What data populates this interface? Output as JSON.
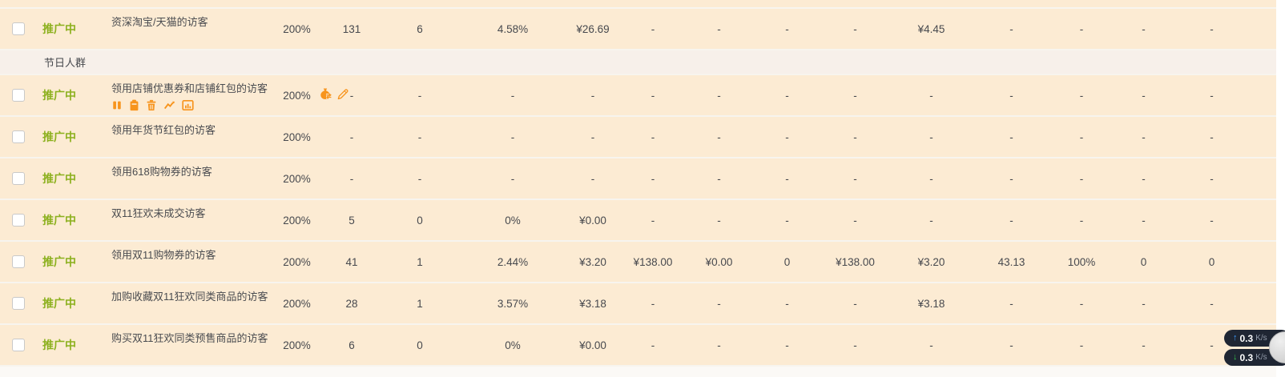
{
  "colors": {
    "row_bg": "#fcebd3",
    "section_bg": "#f7f0ea",
    "separator": "#f7f4ee",
    "status_green": "#8cb01e",
    "icon_orange": "#f7941d",
    "value_text": "#47494e",
    "monitor_bg": "#1f2633",
    "monitor_up_arrow": "#3d9bff",
    "monitor_down_arrow": "#35c24a"
  },
  "table": {
    "rows": [
      {
        "type": "data",
        "status": "推广中",
        "name": "资深淘宝/天猫的访客",
        "values": [
          "200%",
          "131",
          "6",
          "4.58%",
          "¥26.69",
          "-",
          "-",
          "-",
          "-",
          "¥4.45",
          "-",
          "-",
          "-",
          "-"
        ]
      },
      {
        "type": "section",
        "label": "节日人群"
      },
      {
        "type": "data",
        "status": "推广中",
        "name": "领用店铺优惠券和店铺红包的访客",
        "values": [
          "200%",
          "-",
          "-",
          "-",
          "-",
          "-",
          "-",
          "-",
          "-",
          "-",
          "-",
          "-",
          "-",
          "-"
        ],
        "action_icons": [
          "pause-icon",
          "clipboard-icon",
          "trash-icon",
          "line-chart-icon",
          "report-icon"
        ],
        "premium_icons": [
          "money-bag-icon",
          "edit-pencil-icon"
        ]
      },
      {
        "type": "data",
        "status": "推广中",
        "name": "领用年货节红包的访客",
        "values": [
          "200%",
          "-",
          "-",
          "-",
          "-",
          "-",
          "-",
          "-",
          "-",
          "-",
          "-",
          "-",
          "-",
          "-"
        ]
      },
      {
        "type": "data",
        "status": "推广中",
        "name": "领用618购物券的访客",
        "values": [
          "200%",
          "-",
          "-",
          "-",
          "-",
          "-",
          "-",
          "-",
          "-",
          "-",
          "-",
          "-",
          "-",
          "-"
        ]
      },
      {
        "type": "data",
        "status": "推广中",
        "name": "双11狂欢未成交访客",
        "values": [
          "200%",
          "5",
          "0",
          "0%",
          "¥0.00",
          "-",
          "-",
          "-",
          "-",
          "-",
          "-",
          "-",
          "-",
          "-"
        ]
      },
      {
        "type": "data",
        "status": "推广中",
        "name": "领用双11购物券的访客",
        "values": [
          "200%",
          "41",
          "1",
          "2.44%",
          "¥3.20",
          "¥138.00",
          "¥0.00",
          "0",
          "¥138.00",
          "¥3.20",
          "43.13",
          "100%",
          "0",
          "0"
        ]
      },
      {
        "type": "data",
        "status": "推广中",
        "name": "加购收藏双11狂欢同类商品的访客",
        "values": [
          "200%",
          "28",
          "1",
          "3.57%",
          "¥3.18",
          "-",
          "-",
          "-",
          "-",
          "¥3.18",
          "-",
          "-",
          "-",
          "-"
        ]
      },
      {
        "type": "data",
        "status": "推广中",
        "name": "购买双11狂欢同类预售商品的访客",
        "values": [
          "200%",
          "6",
          "0",
          "0%",
          "¥0.00",
          "-",
          "-",
          "-",
          "-",
          "-",
          "-",
          "-",
          "-",
          "-"
        ]
      }
    ]
  },
  "net_monitor": {
    "up_arrow": "↑",
    "up_value": "0.3",
    "up_unit": "K/s",
    "down_arrow": "↓",
    "down_value": "0.3",
    "down_unit": "K/s"
  }
}
